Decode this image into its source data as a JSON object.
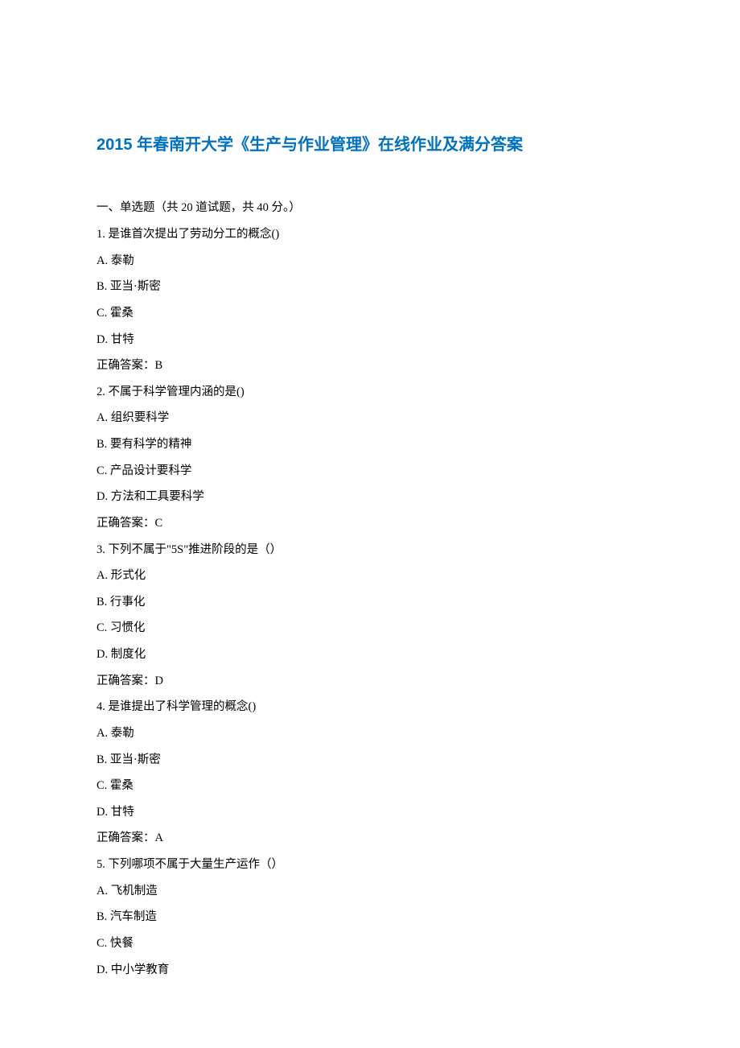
{
  "title": "2015 年春南开大学《生产与作业管理》在线作业及满分答案",
  "section_header": "一、单选题（共 20 道试题，共 40 分。）",
  "questions": [
    {
      "num": "1.",
      "text": "是谁首次提出了劳动分工的概念()",
      "options": [
        {
          "label": "A.",
          "text": "泰勒"
        },
        {
          "label": "B.",
          "text": "亚当·斯密"
        },
        {
          "label": "C.",
          "text": "霍桑"
        },
        {
          "label": "D.",
          "text": "甘特"
        }
      ],
      "answer_label": "正确答案：",
      "answer": "B"
    },
    {
      "num": "2.",
      "text": "不属于科学管理内涵的是()",
      "options": [
        {
          "label": "A.",
          "text": "组织要科学"
        },
        {
          "label": "B.",
          "text": "要有科学的精神"
        },
        {
          "label": "C.",
          "text": "产品设计要科学"
        },
        {
          "label": "D.",
          "text": "方法和工具要科学"
        }
      ],
      "answer_label": "正确答案：",
      "answer": "C"
    },
    {
      "num": "3.",
      "text": "下列不属于\"5S\"推进阶段的是（）",
      "options": [
        {
          "label": "A.",
          "text": "形式化"
        },
        {
          "label": "B.",
          "text": "行事化"
        },
        {
          "label": "C.",
          "text": "习惯化"
        },
        {
          "label": "D.",
          "text": "制度化"
        }
      ],
      "answer_label": "正确答案：",
      "answer": "D"
    },
    {
      "num": "4.",
      "text": "是谁提出了科学管理的概念()",
      "options": [
        {
          "label": "A.",
          "text": "泰勒"
        },
        {
          "label": "B.",
          "text": "亚当·斯密"
        },
        {
          "label": "C.",
          "text": "霍桑"
        },
        {
          "label": "D.",
          "text": "甘特"
        }
      ],
      "answer_label": "正确答案：",
      "answer": "A"
    },
    {
      "num": "5.",
      "text": "下列哪项不属于大量生产运作（）",
      "options": [
        {
          "label": "A.",
          "text": "飞机制造"
        },
        {
          "label": "B.",
          "text": "汽车制造"
        },
        {
          "label": "C.",
          "text": "快餐"
        },
        {
          "label": "D.",
          "text": "中小学教育"
        }
      ],
      "answer_label": "",
      "answer": ""
    }
  ]
}
